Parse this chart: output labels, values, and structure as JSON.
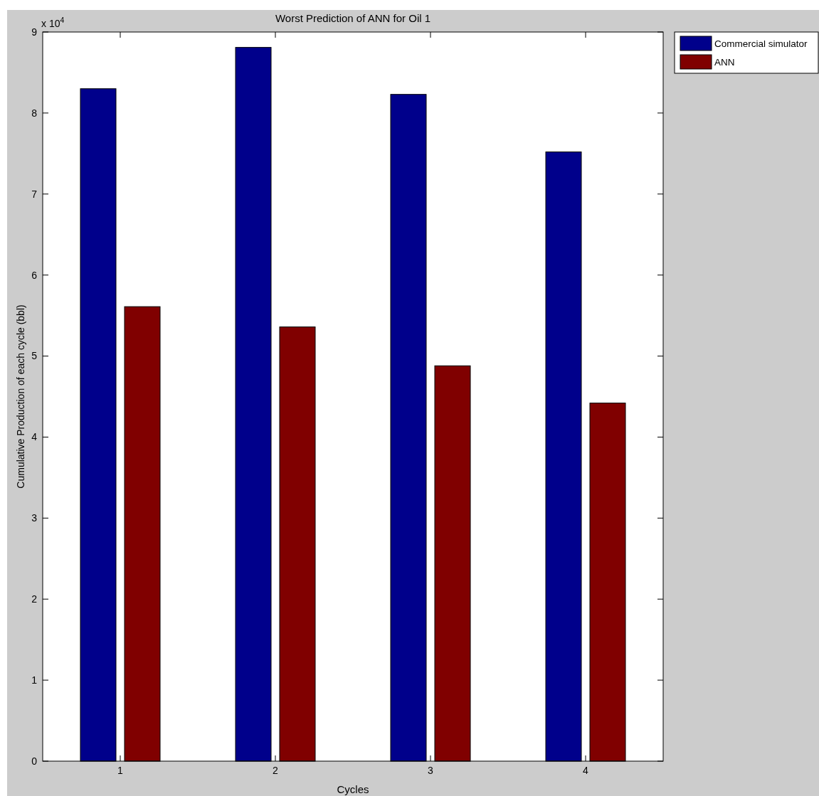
{
  "chart_data": {
    "type": "bar",
    "title": "Worst Prediction of ANN for Oil 1",
    "xlabel": "Cycles",
    "ylabel": "Cumulative Production of each cycle (bbl)",
    "annotations": [
      "x 10$^{4}$"
    ],
    "categories": [
      "1",
      "2",
      "3",
      "4"
    ],
    "series": [
      {
        "name": "Commercial simulator",
        "color": "#00008b",
        "values": [
          8.3,
          8.81,
          8.23,
          7.52
        ]
      },
      {
        "name": "ANN",
        "color": "#800000",
        "values": [
          5.61,
          5.36,
          4.88,
          4.42
        ]
      }
    ],
    "ylim": [
      0,
      9
    ],
    "yticks": [
      0,
      1,
      2,
      3,
      4,
      5,
      6,
      7,
      8,
      9
    ],
    "grid": false,
    "legend": "top right"
  }
}
